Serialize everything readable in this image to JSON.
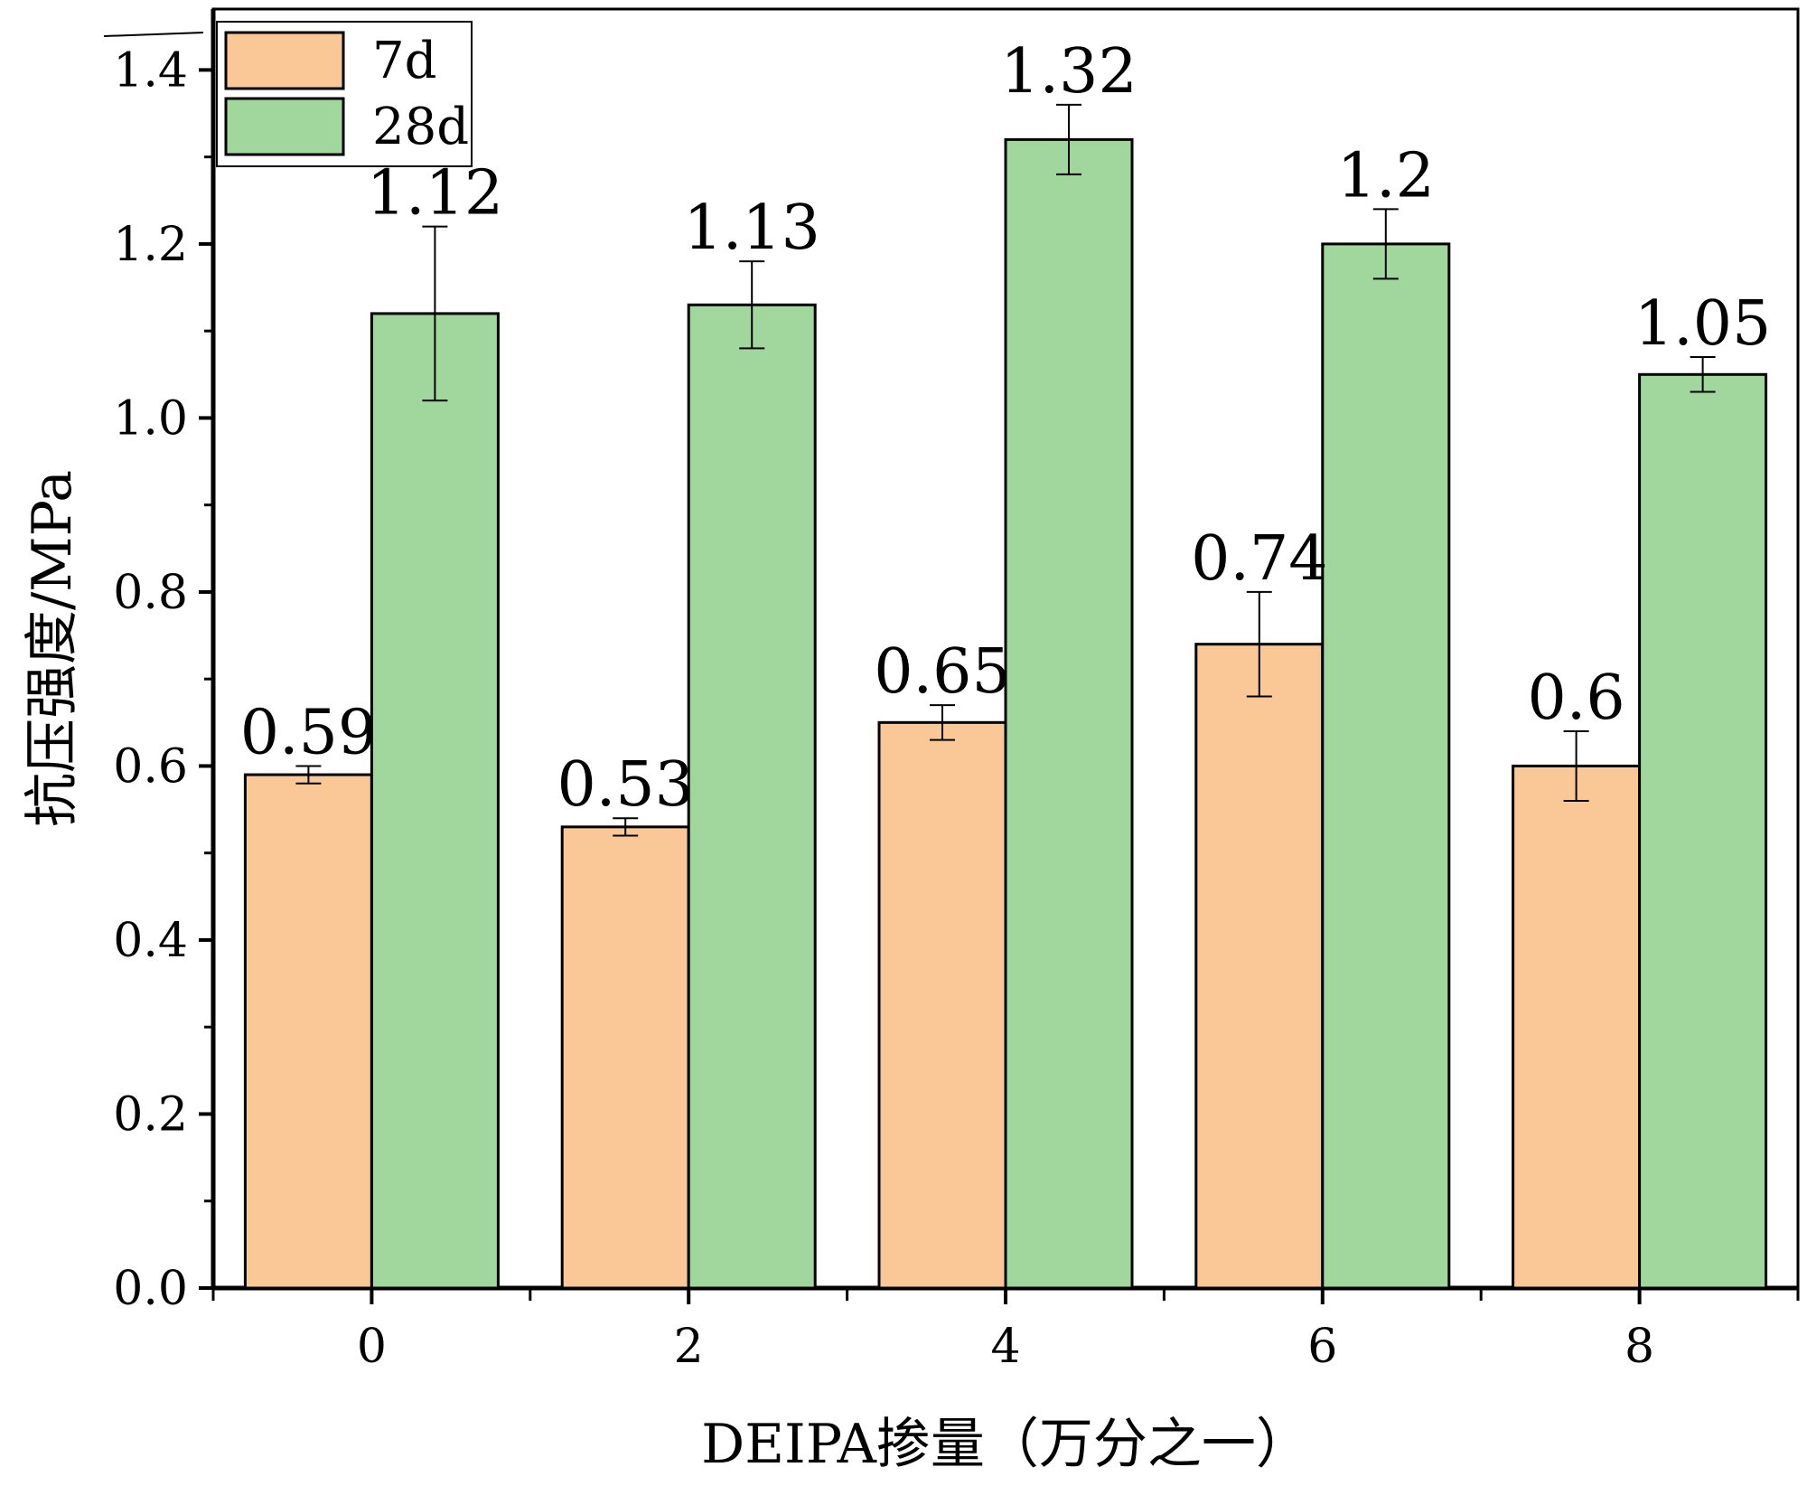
{
  "chart_data": {
    "type": "bar",
    "categories": [
      "0",
      "2",
      "4",
      "6",
      "8"
    ],
    "series": [
      {
        "name": "7d",
        "color": "#FAC796",
        "values": [
          0.59,
          0.53,
          0.65,
          0.74,
          0.6
        ],
        "errors": [
          0.01,
          0.01,
          0.02,
          0.06,
          0.04
        ],
        "value_labels": [
          "0.59",
          "0.53",
          "0.65",
          "0.74",
          "0.6"
        ]
      },
      {
        "name": "28d",
        "color": "#A1D79D",
        "values": [
          1.12,
          1.13,
          1.32,
          1.2,
          1.05
        ],
        "errors": [
          0.1,
          0.05,
          0.04,
          0.04,
          0.02
        ],
        "value_labels": [
          "1.12",
          "1.13",
          "1.32",
          "1.2",
          "1.05"
        ]
      }
    ],
    "title": "",
    "xlabel": "DEIPA掺量（万分之一）",
    "ylabel": "抗压强度/MPa",
    "ylim": [
      0,
      1.47
    ],
    "yticks": [
      "0.0",
      "0.2",
      "0.4",
      "0.6",
      "0.8",
      "1.0",
      "1.2",
      "1.4"
    ],
    "grid": false,
    "legend_position": "top-left"
  }
}
